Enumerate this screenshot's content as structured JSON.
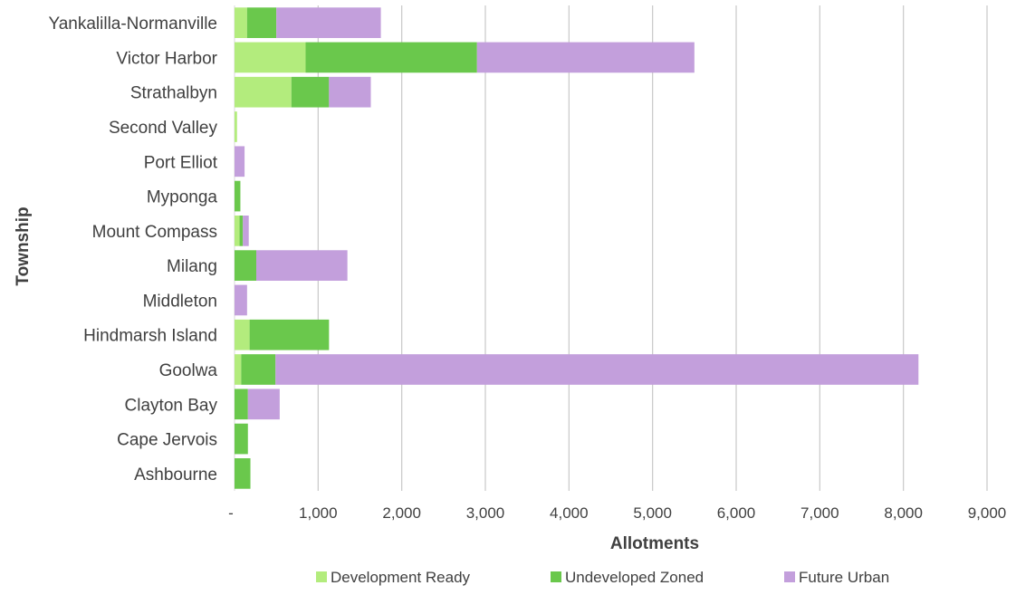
{
  "chart_data": {
    "type": "bar",
    "orientation": "horizontal",
    "stacked": true,
    "xlabel": "Allotments",
    "ylabel": "Township",
    "xlim": [
      0,
      9000
    ],
    "x_ticks": [
      0,
      1000,
      2000,
      3000,
      4000,
      5000,
      6000,
      7000,
      8000,
      9000
    ],
    "x_tick_labels": [
      "-",
      "1,000",
      "2,000",
      "3,000",
      "4,000",
      "5,000",
      "6,000",
      "7,000",
      "8,000",
      "9,000"
    ],
    "grid": "vertical",
    "legend_position": "bottom",
    "categories": [
      "Yankalilla-Normanville",
      "Victor Harbor",
      "Strathalbyn",
      "Second Valley",
      "Port Elliot",
      "Myponga",
      "Mount Compass",
      "Milang",
      "Middleton",
      "Hindmarsh Island",
      "Goolwa",
      "Clayton Bay",
      "Cape Jervois",
      "Ashbourne"
    ],
    "series": [
      {
        "name": "Development Ready",
        "color": "#b3ec7d",
        "values": [
          150,
          850,
          680,
          30,
          0,
          0,
          60,
          0,
          0,
          180,
          80,
          0,
          0,
          0
        ]
      },
      {
        "name": "Undeveloped Zoned",
        "color": "#6ac84c",
        "values": [
          350,
          2050,
          450,
          0,
          0,
          70,
          40,
          260,
          0,
          950,
          410,
          160,
          160,
          190
        ]
      },
      {
        "name": "Future Urban",
        "color": "#c39fdc",
        "values": [
          1250,
          2600,
          500,
          0,
          120,
          0,
          70,
          1090,
          150,
          0,
          7690,
          380,
          0,
          0
        ]
      }
    ]
  }
}
